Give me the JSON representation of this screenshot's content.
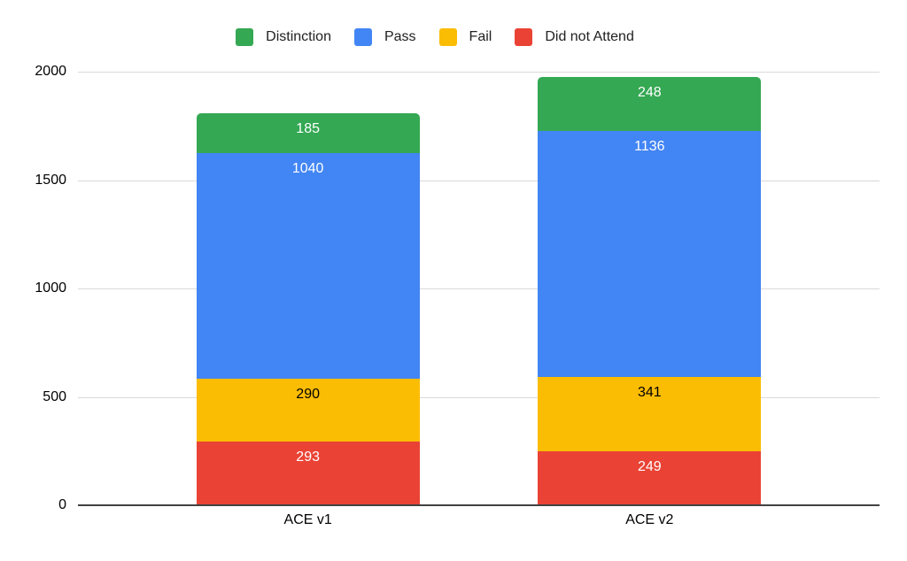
{
  "chart_data": {
    "type": "bar",
    "stacked": true,
    "title": "",
    "xlabel": "",
    "ylabel": "",
    "categories": [
      "ACE v1",
      "ACE v2"
    ],
    "series": [
      {
        "name": "Distinction",
        "color": "#34A853",
        "label_color": "#ffffff",
        "values": [
          185,
          248
        ]
      },
      {
        "name": "Pass",
        "color": "#4285F4",
        "label_color": "#ffffff",
        "values": [
          1040,
          1136
        ]
      },
      {
        "name": "Fail",
        "color": "#FBBC04",
        "label_color": "#000000",
        "values": [
          290,
          341
        ]
      },
      {
        "name": "Did not Attend",
        "color": "#EA4335",
        "label_color": "#ffffff",
        "values": [
          293,
          249
        ]
      }
    ],
    "stack_order_bottom_to_top": [
      "Did not Attend",
      "Fail",
      "Pass",
      "Distinction"
    ],
    "totals": [
      1808,
      1974
    ],
    "ylim": [
      0,
      2000
    ],
    "yticks": [
      0,
      500,
      1000,
      1500,
      2000
    ],
    "grid": true,
    "legend_position": "top",
    "colors": {
      "gridline": "#d9d9d9",
      "baseline": "#424242",
      "axis_text": "#000000",
      "legend_text": "#212121",
      "background": "#ffffff"
    }
  }
}
